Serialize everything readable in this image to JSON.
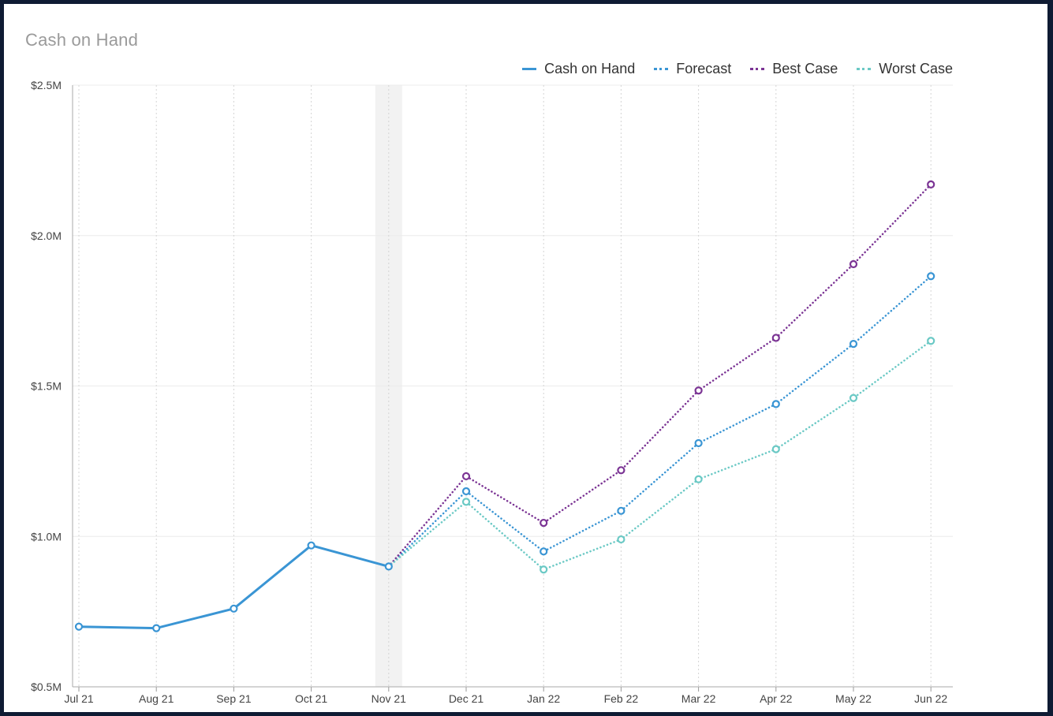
{
  "chart_data": {
    "type": "line",
    "title": "Cash on Hand",
    "categories": [
      "Jul 21",
      "Aug 21",
      "Sep 21",
      "Oct 21",
      "Nov 21",
      "Dec 21",
      "Jan 22",
      "Feb 22",
      "Mar 22",
      "Apr 22",
      "May 22",
      "Jun 22"
    ],
    "ylim": [
      0.5,
      2.5
    ],
    "yticks": [
      0.5,
      1.0,
      1.5,
      2.0,
      2.5
    ],
    "ytick_labels": [
      "$0.5M",
      "$1.0M",
      "$1.5M",
      "$2.0M",
      "$2.5M"
    ],
    "y_unit": "M",
    "grid": true,
    "legend_position": "top-right",
    "highlight_category": "Nov 21",
    "series": [
      {
        "name": "Cash on Hand",
        "style": "solid",
        "color": "#3a95d4",
        "values": [
          0.7,
          0.695,
          0.76,
          0.97,
          0.9,
          null,
          null,
          null,
          null,
          null,
          null,
          null
        ]
      },
      {
        "name": "Forecast",
        "style": "dotted",
        "color": "#3a95d4",
        "values": [
          null,
          null,
          null,
          null,
          0.9,
          1.15,
          0.95,
          1.085,
          1.31,
          1.44,
          1.64,
          1.865
        ]
      },
      {
        "name": "Best Case",
        "style": "dotted",
        "color": "#7b3494",
        "values": [
          null,
          null,
          null,
          null,
          0.9,
          1.2,
          1.045,
          1.22,
          1.485,
          1.66,
          1.905,
          2.17
        ]
      },
      {
        "name": "Worst Case",
        "style": "dotted",
        "color": "#6bc9c5",
        "values": [
          null,
          null,
          null,
          null,
          0.9,
          1.115,
          0.89,
          0.99,
          1.19,
          1.29,
          1.46,
          1.65
        ]
      }
    ]
  }
}
